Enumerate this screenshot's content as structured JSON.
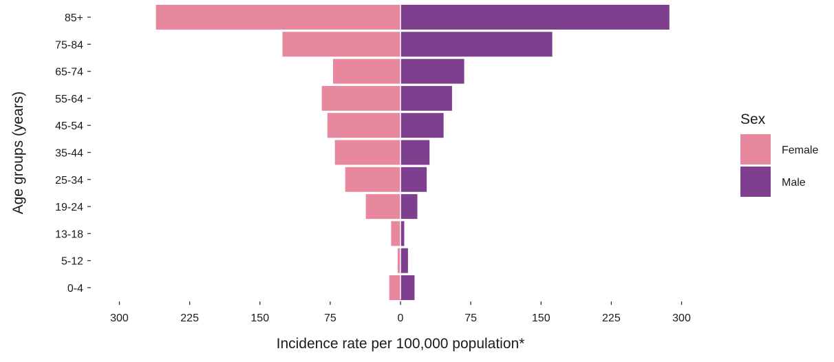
{
  "chart_data": {
    "type": "bar",
    "orientation": "horizontal-population-pyramid",
    "categories": [
      "85+",
      "75-84",
      "65-74",
      "55-64",
      "45-54",
      "35-44",
      "25-34",
      "19-24",
      "13-18",
      "5-12",
      "0-4"
    ],
    "series": [
      {
        "name": "Female",
        "color": "#E8889E",
        "values": [
          261,
          126,
          72,
          84,
          78,
          70,
          59,
          37,
          10,
          3,
          12
        ]
      },
      {
        "name": "Male",
        "color": "#7E3F8F",
        "values": [
          287,
          162,
          68,
          55,
          46,
          31,
          28,
          18,
          4,
          8,
          15
        ]
      }
    ],
    "xlabel": "Incidence rate per 100,000 population*",
    "ylabel": "Age groups (years)",
    "xlim": [
      -300,
      300
    ],
    "x_ticks": [
      -300,
      -225,
      -150,
      -75,
      0,
      75,
      150,
      225,
      300
    ],
    "x_tick_labels": [
      "300",
      "225",
      "150",
      "75",
      "0",
      "75",
      "150",
      "225",
      "300"
    ],
    "grid": false,
    "legend": {
      "title": "Sex",
      "position": "right",
      "entries": [
        "Female",
        "Male"
      ]
    }
  }
}
